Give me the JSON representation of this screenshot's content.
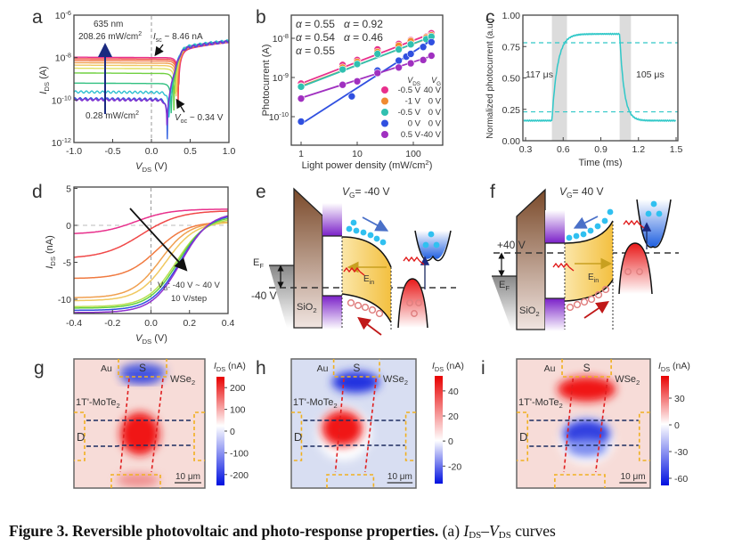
{
  "panels": {
    "a": "a",
    "b": "b",
    "c": "c",
    "d": "d",
    "e": "e",
    "f": "f",
    "g": "g",
    "h": "h",
    "i": "i"
  },
  "caption": {
    "title": "Figure 3. Reversible photovoltaic and photo-response properties.",
    "part": " (a) ",
    "i1": "I",
    "s1": "DS",
    "dash": "–",
    "i2": "V",
    "s2": "DS",
    "rest": " curves"
  },
  "chart_data": [
    {
      "panel": "a",
      "type": "line",
      "yscale": "log",
      "xlabel": [
        {
          "t": "V",
          "f": "i"
        },
        {
          "t": "DS",
          "f": "sub"
        },
        {
          "t": " (V)"
        }
      ],
      "ylabel": [
        {
          "t": "I",
          "f": "i"
        },
        {
          "t": "DS",
          "f": "sub"
        },
        {
          "t": " (A)"
        }
      ],
      "xlim": [
        -1,
        1
      ],
      "ylim_log10": [
        -12,
        -6
      ],
      "xticks": [
        {
          "v": -1,
          "t": "-1.0"
        },
        {
          "v": -0.5,
          "t": "-0.5"
        },
        {
          "v": 0,
          "t": "0.0"
        },
        {
          "v": 0.5,
          "t": "0.5"
        },
        {
          "v": 1,
          "t": "1.0"
        }
      ],
      "yticks": [
        {
          "v": -6,
          "l": [
            {
              "t": "10"
            },
            {
              "t": "-6",
              "f": "sup"
            }
          ]
        },
        {
          "v": -8,
          "l": [
            {
              "t": "10"
            },
            {
              "t": "-8",
              "f": "sup"
            }
          ]
        },
        {
          "v": -10,
          "l": [
            {
              "t": "10"
            },
            {
              "t": "-10",
              "f": "sup"
            }
          ]
        },
        {
          "v": -12,
          "l": [
            {
              "t": "10"
            },
            {
              "t": "-12",
              "f": "sup"
            }
          ]
        }
      ],
      "annotations": {
        "wavelength": "635 nm",
        "max_power": [
          {
            "t": "208.26 mW/cm"
          },
          {
            "t": "2",
            "f": "sup"
          }
        ],
        "min_power": [
          {
            "t": "0.28 mW/cm"
          },
          {
            "t": "2",
            "f": "sup"
          }
        ],
        "isc": [
          {
            "t": "I",
            "f": "i"
          },
          {
            "t": "sc",
            "f": "sub"
          },
          {
            "t": " ~ 8.46 nA"
          }
        ],
        "voc": [
          {
            "t": "V",
            "f": "i"
          },
          {
            "t": "oc",
            "f": "sub"
          },
          {
            "t": " ~ 0.34 V"
          }
        ],
        "max_color": "#e8308c",
        "min_color": "#a030c0",
        "arrow_color": "#1a2a80"
      },
      "diode": {
        "saturation_current_A": 1.2e-13,
        "thermal_voltage_V": 0.03
      },
      "series": [
        {
          "photocurrent_A": 1e-08,
          "color": "#e8308c"
        },
        {
          "photocurrent_A": 8.5e-09,
          "color": "#f04848"
        },
        {
          "photocurrent_A": 7e-09,
          "color": "#f07040"
        },
        {
          "photocurrent_A": 5.5e-09,
          "color": "#f0a050"
        },
        {
          "photocurrent_A": 4.2e-09,
          "color": "#f0c860"
        },
        {
          "photocurrent_A": 3e-09,
          "color": "#e0e060"
        },
        {
          "photocurrent_A": 1.8e-09,
          "color": "#70d040"
        },
        {
          "photocurrent_A": 6e-10,
          "color": "#30c080"
        },
        {
          "photocurrent_A": 2.3e-10,
          "color": "#30c0d0"
        },
        {
          "photocurrent_A": 1.1e-10,
          "color": "#3060e0"
        },
        {
          "photocurrent_A": 1e-10,
          "color": "#8030d0"
        }
      ]
    },
    {
      "panel": "b",
      "type": "scatter",
      "xscale": "log",
      "yscale": "log",
      "xlabel": [
        {
          "t": "Light power density (mW/cm"
        },
        {
          "t": "2",
          "f": "sup"
        },
        {
          "t": ")"
        }
      ],
      "ylabel": [
        {
          "t": "Photocurrent (A)"
        }
      ],
      "xticks": [
        {
          "v": 1,
          "t": "1"
        },
        {
          "v": 10,
          "t": "10"
        },
        {
          "v": 100,
          "t": "100"
        }
      ],
      "yticks": [
        {
          "v": -8,
          "l": [
            {
              "t": "10"
            },
            {
              "t": "-8",
              "f": "sup"
            }
          ]
        },
        {
          "v": -9,
          "l": [
            {
              "t": "10"
            },
            {
              "t": "-9",
              "f": "sup"
            }
          ]
        },
        {
          "v": -10,
          "l": [
            {
              "t": "10"
            },
            {
              "t": "-10",
              "f": "sup"
            }
          ]
        }
      ],
      "legend_header": [
        [
          {
            "t": "V",
            "f": "i"
          },
          {
            "t": "DS",
            "f": "sub"
          }
        ],
        [
          {
            "t": "V",
            "f": "i"
          },
          {
            "t": "G",
            "f": "sub"
          }
        ]
      ],
      "series": [
        {
          "vds": "-0.5 V",
          "vg": "40 V",
          "color": "#e8308c",
          "alpha_label": [
            {
              "t": "α",
              "f": "i"
            },
            {
              "t": " = 0.55"
            }
          ],
          "alpha": 0.55,
          "prefactor": 7e-10,
          "x": [
            1,
            5.5,
            10,
            23,
            55,
            90,
            170,
            210
          ],
          "y": [
            7e-10,
            2.1e-09,
            2.8e-09,
            5.2e-09,
            7.2e-09,
            9e-09,
            1.1e-08,
            1.35e-08
          ]
        },
        {
          "vds": "-1 V",
          "vg": "0 V",
          "color": "#f08a30",
          "alpha_label": [
            {
              "t": "α",
              "f": "i"
            },
            {
              "t": " = 0.54"
            }
          ],
          "alpha": 0.54,
          "prefactor": 6e-10,
          "x": [
            1,
            5.5,
            10,
            23,
            55,
            90,
            170,
            210
          ],
          "y": [
            6e-10,
            1.8e-09,
            2.5e-09,
            4.5e-09,
            6.5e-09,
            8.5e-09,
            1.05e-08,
            1.2e-08
          ]
        },
        {
          "vds": "-0.5 V",
          "vg": "0 V",
          "color": "#30c0b0",
          "alpha_label": [
            {
              "t": "α",
              "f": "i"
            },
            {
              "t": " = 0.55"
            }
          ],
          "alpha": 0.55,
          "prefactor": 5.8e-10,
          "x": [
            1,
            5.5,
            10,
            23,
            55,
            90,
            170,
            210
          ],
          "y": [
            5.8e-10,
            1.6e-09,
            2.2e-09,
            4e-09,
            5.2e-09,
            7e-09,
            9.5e-09,
            1.1e-08
          ]
        },
        {
          "vds": "0 V",
          "vg": "0 V",
          "color": "#3050e0",
          "alpha_label": [
            {
              "t": "α",
              "f": "i"
            },
            {
              "t": " = 0.92"
            }
          ],
          "alpha": 0.92,
          "prefactor": 6.5e-11,
          "x": [
            1,
            8,
            23,
            55,
            75,
            90,
            150,
            210
          ],
          "y": [
            7.5e-11,
            3.3e-10,
            1.5e-09,
            2.7e-09,
            3.4e-09,
            4e-09,
            6e-09,
            8e-09
          ]
        },
        {
          "vds": "0.5 V",
          "vg": "-40 V",
          "color": "#a030c0",
          "alpha_label": [
            {
              "t": "α",
              "f": "i"
            },
            {
              "t": " = 0.46"
            }
          ],
          "alpha": 0.46,
          "prefactor": 3e-10,
          "x": [
            1,
            5.5,
            10,
            23,
            55,
            90,
            150,
            210
          ],
          "y": [
            2.9e-10,
            6.5e-10,
            8e-10,
            1.3e-09,
            1.8e-09,
            2.3e-09,
            2.8e-09,
            3.6e-09
          ]
        }
      ]
    },
    {
      "panel": "c",
      "type": "line",
      "xlabel": [
        {
          "t": "Time (ms)"
        }
      ],
      "ylabel": [
        {
          "t": "Normalized photocurrent (a.u.)"
        }
      ],
      "xlim": [
        0.3,
        1.5
      ],
      "ylim": [
        0,
        1
      ],
      "xticks": [
        {
          "v": 0.3,
          "t": "0.3"
        },
        {
          "v": 0.6,
          "t": "0.6"
        },
        {
          "v": 0.9,
          "t": "0.9"
        },
        {
          "v": 1.2,
          "t": "1.2"
        },
        {
          "v": 1.5,
          "t": "1.5"
        }
      ],
      "yticks": [
        {
          "v": 0,
          "t": "0.00"
        },
        {
          "v": 0.25,
          "t": "0.25"
        },
        {
          "v": 0.5,
          "t": "0.50"
        },
        {
          "v": 0.75,
          "t": "0.75"
        },
        {
          "v": 1,
          "t": "1.00"
        }
      ],
      "baseline": 0.16,
      "plateau": 0.85,
      "on_ms": 0.51,
      "off_ms": 1.05,
      "tau_rise_ms": 0.045,
      "tau_fall_ms": 0.035,
      "thresholds": [
        0.23,
        0.78
      ],
      "rise_band_ms": [
        0.51,
        0.63
      ],
      "fall_band_ms": [
        1.05,
        1.14
      ],
      "rise_label": "117 μs",
      "fall_label": "105 μs",
      "color": "#30c8c8"
    },
    {
      "panel": "d",
      "type": "line",
      "xlabel": [
        {
          "t": "V",
          "f": "i"
        },
        {
          "t": "DS",
          "f": "sub"
        },
        {
          "t": " (V)"
        }
      ],
      "ylabel": [
        {
          "t": "I",
          "f": "i"
        },
        {
          "t": "DS",
          "f": "sub"
        },
        {
          "t": " (nA)"
        }
      ],
      "xlim": [
        -0.4,
        0.4
      ],
      "ylim": [
        -12,
        5
      ],
      "xticks": [
        {
          "v": -0.4,
          "t": "-0.4"
        },
        {
          "v": -0.2,
          "t": "-0.2"
        },
        {
          "v": 0,
          "t": "0.0"
        },
        {
          "v": 0.2,
          "t": "0.2"
        },
        {
          "v": 0.4,
          "t": "0.4"
        }
      ],
      "yticks": [
        {
          "v": 5,
          "t": "5"
        },
        {
          "v": 0,
          "t": "0"
        },
        {
          "v": -5,
          "t": "-5"
        },
        {
          "v": -10,
          "t": "-10"
        }
      ],
      "annotation": [
        {
          "t": "V"
        },
        {
          "t": "G",
          "f": "sub"
        },
        {
          "t": ": -40 V ~ 40 V"
        }
      ],
      "annotation2": "10 V/step",
      "series": [
        {
          "left": -1.2,
          "right": 2.2,
          "center": -0.08,
          "width": 0.09,
          "color": "#e8308c"
        },
        {
          "left": -4.5,
          "right": 2.0,
          "center": -0.05,
          "width": 0.1,
          "color": "#f04848"
        },
        {
          "left": -7.2,
          "right": 0.5,
          "center": 0.03,
          "width": 0.08,
          "color": "#f07a40"
        },
        {
          "left": -9.8,
          "right": 0.5,
          "center": 0.05,
          "width": 0.075,
          "color": "#f0a050"
        },
        {
          "left": -10.2,
          "right": 0.5,
          "center": 0.08,
          "width": 0.075,
          "color": "#f0c860"
        },
        {
          "left": -11.0,
          "right": 1.0,
          "center": 0.13,
          "width": 0.075,
          "color": "#b8e050"
        },
        {
          "left": -11.2,
          "right": 1.3,
          "center": 0.14,
          "width": 0.075,
          "color": "#60d040"
        },
        {
          "left": -11.5,
          "right": 1.6,
          "center": 0.15,
          "width": 0.075,
          "color": "#3050e0"
        },
        {
          "left": -11.8,
          "right": 1.8,
          "center": 0.155,
          "width": 0.075,
          "color": "#9030d0"
        }
      ]
    },
    {
      "panel": "g",
      "type": "heatmap",
      "colorbar_label": [
        {
          "t": "I",
          "f": "i"
        },
        {
          "t": "DS",
          "f": "sub"
        },
        {
          "t": " (nA)"
        }
      ],
      "range": [
        -250,
        250
      ],
      "ticks": [
        {
          "v": 200,
          "t": "200"
        },
        {
          "v": 100,
          "t": "100"
        },
        {
          "v": 0,
          "t": "0"
        },
        {
          "v": -100,
          "t": "-100"
        },
        {
          "v": -200,
          "t": "-200"
        }
      ]
    },
    {
      "panel": "h",
      "type": "heatmap",
      "colorbar_label": [
        {
          "t": "I",
          "f": "i"
        },
        {
          "t": "DS",
          "f": "sub"
        },
        {
          "t": " (nA)"
        }
      ],
      "range": [
        -34,
        52
      ],
      "ticks": [
        {
          "v": 40,
          "t": "40"
        },
        {
          "v": 20,
          "t": "20"
        },
        {
          "v": 0,
          "t": "0"
        },
        {
          "v": -20,
          "t": "-20"
        }
      ]
    },
    {
      "panel": "i",
      "type": "heatmap",
      "colorbar_label": [
        {
          "t": "I",
          "f": "i"
        },
        {
          "t": "DS",
          "f": "sub"
        },
        {
          "t": " (nA)"
        }
      ],
      "range": [
        -68,
        55
      ],
      "ticks": [
        {
          "v": 30,
          "t": "30"
        },
        {
          "v": 0,
          "t": "0"
        },
        {
          "v": -30,
          "t": "-30"
        },
        {
          "v": -60,
          "t": "-60"
        }
      ]
    }
  ],
  "map_labels": {
    "au": "Au",
    "source": "S",
    "drain": "D",
    "wse2": [
      {
        "t": "WSe"
      },
      {
        "t": "2",
        "f": "sub"
      }
    ],
    "mote2": [
      {
        "t": "1T'-MoTe"
      },
      {
        "t": "2",
        "f": "sub"
      }
    ],
    "scale": "10 μm"
  },
  "band_e": {
    "vg": [
      {
        "t": "V",
        "f": "i"
      },
      {
        "t": "G",
        "f": "sub"
      },
      {
        "t": "= -40 V"
      }
    ],
    "ef": [
      {
        "t": "E"
      },
      {
        "t": "F",
        "f": "sub"
      }
    ],
    "bias": "-40 V",
    "sio2": [
      {
        "t": "SiO"
      },
      {
        "t": "2",
        "f": "sub"
      }
    ],
    "ein": [
      {
        "t": "E"
      },
      {
        "t": "in",
        "f": "sub"
      }
    ]
  },
  "band_f": {
    "vg": [
      {
        "t": "V",
        "f": "i"
      },
      {
        "t": "G",
        "f": "sub"
      },
      {
        "t": "= 40 V"
      }
    ],
    "ef": [
      {
        "t": "E"
      },
      {
        "t": "F",
        "f": "sub"
      }
    ],
    "bias": "+40 V",
    "sio2": [
      {
        "t": "SiO"
      },
      {
        "t": "2",
        "f": "sub"
      }
    ],
    "ein": [
      {
        "t": "E"
      },
      {
        "t": "in",
        "f": "sub"
      }
    ]
  }
}
